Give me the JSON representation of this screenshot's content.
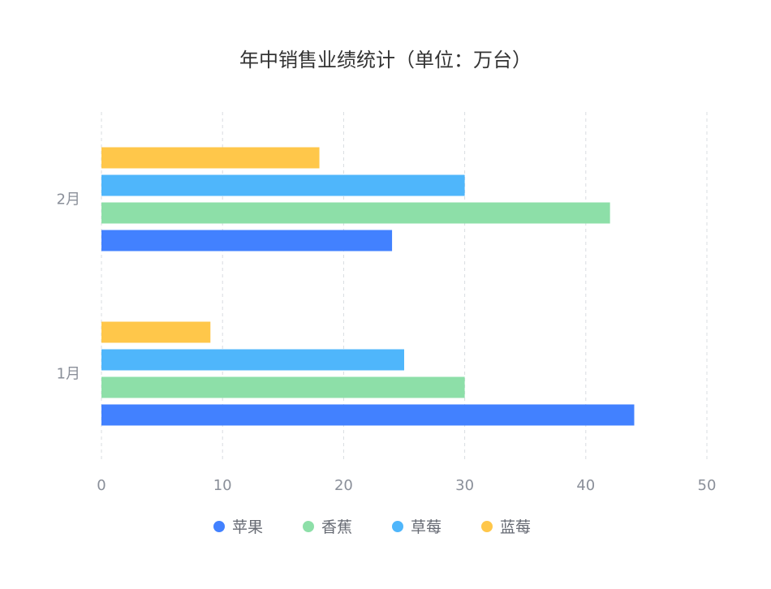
{
  "chart_data": {
    "type": "bar",
    "orientation": "horizontal",
    "title": "年中销售业绩统计（单位：万台）",
    "categories": [
      "1月",
      "2月"
    ],
    "series": [
      {
        "name": "苹果",
        "values": [
          44,
          24
        ],
        "color": "#4281ff"
      },
      {
        "name": "香蕉",
        "values": [
          30,
          42
        ],
        "color": "#8ddfa8"
      },
      {
        "name": "草莓",
        "values": [
          25,
          30
        ],
        "color": "#4fb6fb"
      },
      {
        "name": "蓝莓",
        "values": [
          9,
          18
        ],
        "color": "#ffc74a"
      }
    ],
    "xlim": [
      0,
      50
    ],
    "xticks": [
      "0",
      "10",
      "20",
      "30",
      "40",
      "50"
    ],
    "grid": "vertical-dashed",
    "legend": "bottom-center"
  }
}
